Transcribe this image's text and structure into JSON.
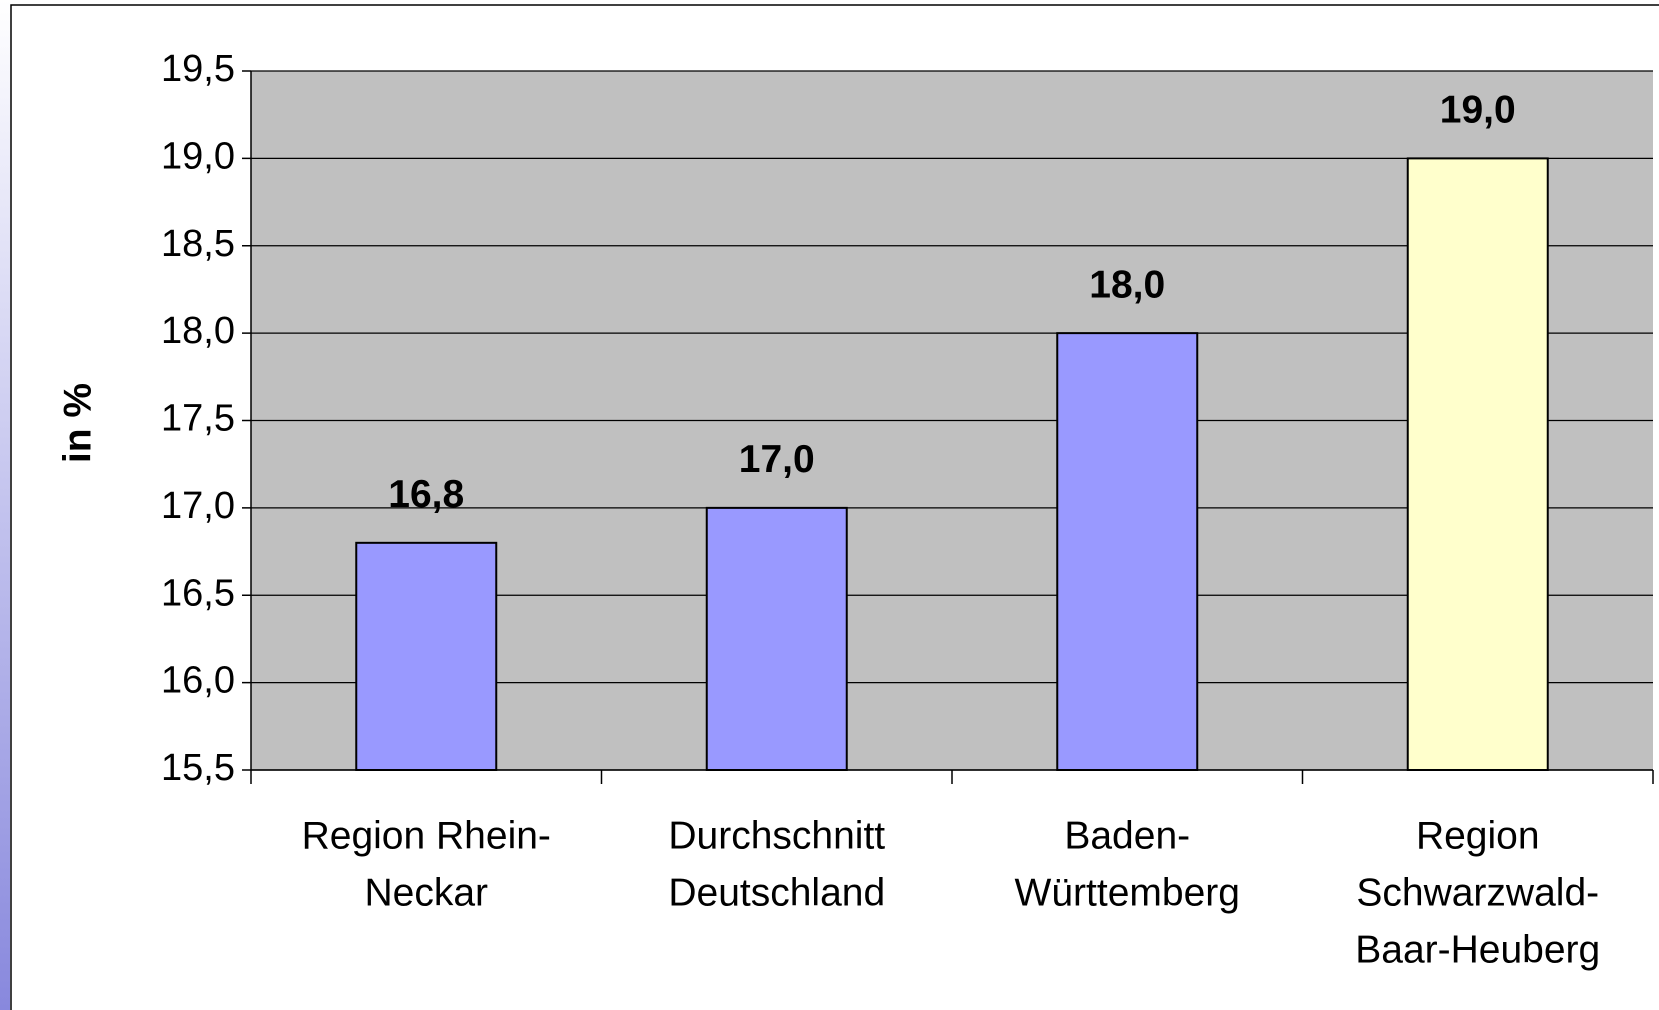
{
  "chart_data": {
    "type": "bar",
    "y_label": "in %",
    "categories": [
      [
        "Region Rhein-",
        "Neckar"
      ],
      [
        "Durchschnitt",
        "Deutschland"
      ],
      [
        "Baden-",
        "Württemberg"
      ],
      [
        "Region",
        "Schwarzwald-",
        "Baar-Heuberg"
      ]
    ],
    "values": [
      16.8,
      17,
      18,
      19
    ],
    "value_labels": [
      "16,8",
      "17,0",
      "18,0",
      "19,0"
    ],
    "colors": [
      "#9999ff",
      "#9999ff",
      "#9999ff",
      "#ffffcc"
    ],
    "ylim": [
      15.5,
      19.5
    ],
    "yticks": [
      {
        "value": 15.5,
        "label": "15,5"
      },
      {
        "value": 16,
        "label": "16,0"
      },
      {
        "value": 16.5,
        "label": "16,5"
      },
      {
        "value": 17,
        "label": "17,0"
      },
      {
        "value": 17.5,
        "label": "17,5"
      },
      {
        "value": 18,
        "label": "18,0"
      },
      {
        "value": 18.5,
        "label": "18,5"
      },
      {
        "value": 19,
        "label": "19,0"
      },
      {
        "value": 19.5,
        "label": "19,5"
      }
    ],
    "grid": true
  }
}
